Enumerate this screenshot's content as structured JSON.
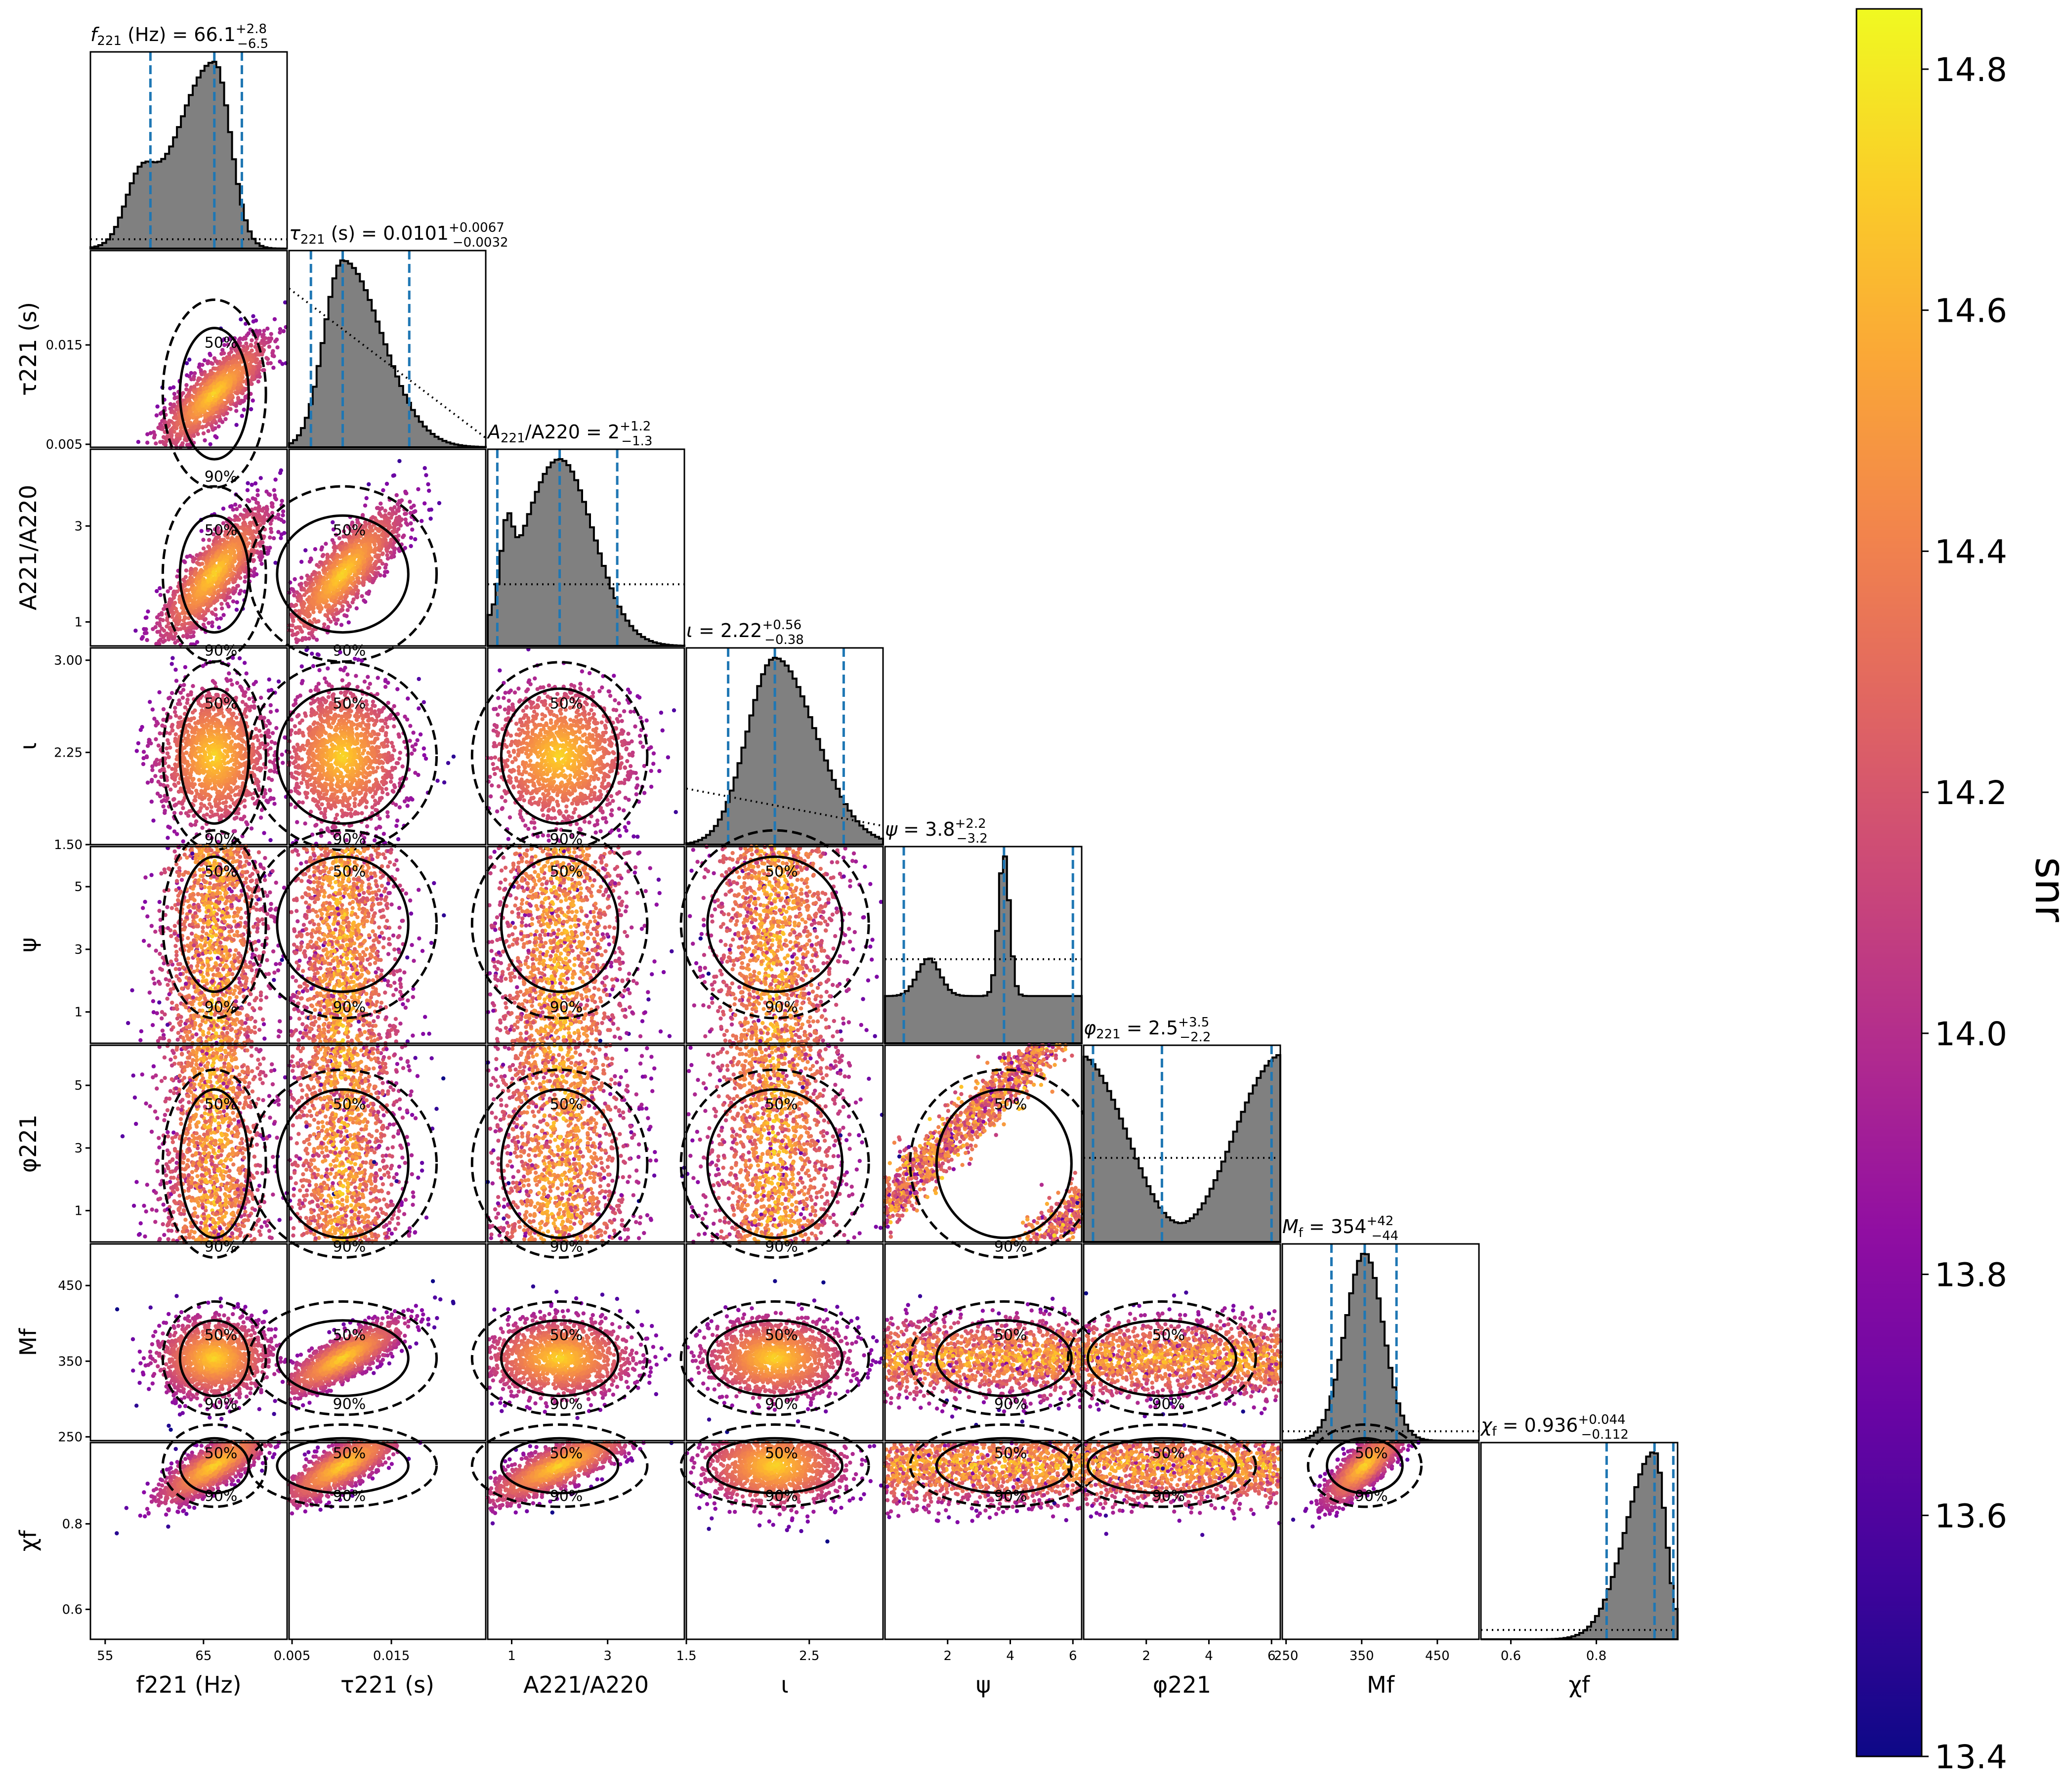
{
  "chart_data": {
    "type": "scatter",
    "kind": "corner plot (pairwise posterior samples coloured by snr, 50% / 90% credible contours, 1D marginal histograms with prior shown dotted)",
    "parameters": [
      {
        "key": "f221",
        "label": "f221 (Hz)",
        "range": [
          53.5,
          73.5
        ],
        "ticks": [
          {
            "v": 55,
            "t": "55"
          },
          {
            "v": 65,
            "t": "65"
          }
        ]
      },
      {
        "key": "tau221",
        "label": "τ221 (s)",
        "range": [
          0.0047,
          0.0245
        ],
        "ticks": [
          {
            "v": 0.005,
            "t": "0.005"
          },
          {
            "v": 0.015,
            "t": "0.015"
          }
        ]
      },
      {
        "key": "A221",
        "label": "A221/A220",
        "range": [
          0.5,
          4.6
        ],
        "ticks": [
          {
            "v": 1,
            "t": "1"
          },
          {
            "v": 3,
            "t": "3"
          }
        ]
      },
      {
        "key": "iota",
        "label": "ι",
        "range": [
          1.5,
          3.1
        ],
        "ticks": [
          {
            "v": 1.5,
            "t": "1.50"
          },
          {
            "v": 2.25,
            "t": "2.25"
          },
          {
            "v": 3.0,
            "t": "3.00"
          }
        ]
      },
      {
        "key": "psi",
        "label": "ψ",
        "range": [
          0,
          6.28
        ],
        "ticks": [
          {
            "v": 1,
            "t": "1"
          },
          {
            "v": 3,
            "t": "3"
          },
          {
            "v": 5,
            "t": "5"
          }
        ]
      },
      {
        "key": "phi221",
        "label": "φ221",
        "range": [
          0,
          6.28
        ],
        "ticks": [
          {
            "v": 1,
            "t": "1"
          },
          {
            "v": 3,
            "t": "3"
          },
          {
            "v": 5,
            "t": "5"
          }
        ]
      },
      {
        "key": "Mf",
        "label": "Mf",
        "range": [
          245,
          505
        ],
        "ticks": [
          {
            "v": 250,
            "t": "250"
          },
          {
            "v": 350,
            "t": "350"
          },
          {
            "v": 450,
            "t": "450"
          }
        ]
      },
      {
        "key": "chif",
        "label": "χf",
        "range": [
          0.53,
          0.99
        ],
        "ticks": [
          {
            "v": 0.6,
            "t": "0.6"
          },
          {
            "v": 0.8,
            "t": "0.8"
          }
        ]
      }
    ],
    "bottom_ticks": [
      [
        {
          "v": 55,
          "t": "55"
        },
        {
          "v": 65,
          "t": "65"
        }
      ],
      [
        {
          "v": 0.005,
          "t": "0.005"
        },
        {
          "v": 0.015,
          "t": "0.015"
        }
      ],
      [
        {
          "v": 1,
          "t": "1"
        },
        {
          "v": 3,
          "t": "3"
        }
      ],
      [
        {
          "v": 1.5,
          "t": "1.5"
        },
        {
          "v": 2.5,
          "t": "2.5"
        }
      ],
      [
        {
          "v": 2,
          "t": "2"
        },
        {
          "v": 4,
          "t": "4"
        },
        {
          "v": 6,
          "t": "6"
        }
      ],
      [
        {
          "v": 2,
          "t": "2"
        },
        {
          "v": 4,
          "t": "4"
        },
        {
          "v": 6,
          "t": "6"
        }
      ],
      [
        {
          "v": 250,
          "t": "250"
        },
        {
          "v": 350,
          "t": "350"
        },
        {
          "v": 450,
          "t": "450"
        }
      ],
      [
        {
          "v": 0.6,
          "t": "0.6"
        },
        {
          "v": 0.8,
          "t": "0.8"
        }
      ]
    ],
    "summaries": [
      {
        "key": "f221",
        "median": 66.1,
        "plus": 2.8,
        "minus": 6.5,
        "title_pre": "f",
        "title_sub": "221",
        "title_post": " (Hz) = ",
        "value": "66.1",
        "sup": "+2.8",
        "sub": "−6.5"
      },
      {
        "key": "tau221",
        "median": 0.0101,
        "plus": 0.0067,
        "minus": 0.0032,
        "title_pre": "τ",
        "title_sub": "221",
        "title_post": " (s) = ",
        "value": "0.0101",
        "sup": "+0.0067",
        "sub": "−0.0032"
      },
      {
        "key": "A221",
        "median": 2,
        "plus": 1.2,
        "minus": 1.3,
        "title_pre": "A",
        "title_sub": "221",
        "title_post": "/A220 = ",
        "value": "2",
        "sup": "+1.2",
        "sub": "−1.3"
      },
      {
        "key": "iota",
        "median": 2.22,
        "plus": 0.56,
        "minus": 0.38,
        "title_pre": "ι",
        "title_sub": "",
        "title_post": " = ",
        "value": "2.22",
        "sup": "+0.56",
        "sub": "−0.38"
      },
      {
        "key": "psi",
        "median": 3.8,
        "plus": 2.2,
        "minus": 3.2,
        "title_pre": "ψ",
        "title_sub": "",
        "title_post": " = ",
        "value": "3.8",
        "sup": "+2.2",
        "sub": "−3.2"
      },
      {
        "key": "phi221",
        "median": 2.5,
        "plus": 3.5,
        "minus": 2.2,
        "title_pre": "φ",
        "title_sub": "221",
        "title_post": " = ",
        "value": "2.5",
        "sup": "+3.5",
        "sub": "−2.2"
      },
      {
        "key": "Mf",
        "median": 354,
        "plus": 42,
        "minus": 44,
        "title_pre": "M",
        "title_sub": "f",
        "title_post": " = ",
        "value": "354",
        "sup": "+42",
        "sub": "−44"
      },
      {
        "key": "chif",
        "median": 0.936,
        "plus": 0.044,
        "minus": 0.112,
        "title_pre": "χ",
        "title_sub": "f",
        "title_post": " = ",
        "value": "0.936",
        "sup": "+0.044",
        "sub": "−0.112"
      }
    ],
    "contour_levels": [
      "50%",
      "90%"
    ],
    "colorbar": {
      "label": "snr",
      "colormap": "plasma",
      "range": [
        13.4,
        14.85
      ],
      "ticks": [
        "13.4",
        "13.6",
        "13.8",
        "14.0",
        "14.2",
        "14.4",
        "14.6",
        "14.8"
      ]
    },
    "colors": {
      "histogram_fill": "#808080",
      "credible_interval_lines": "#1f77b4",
      "contours": "#000000"
    }
  }
}
